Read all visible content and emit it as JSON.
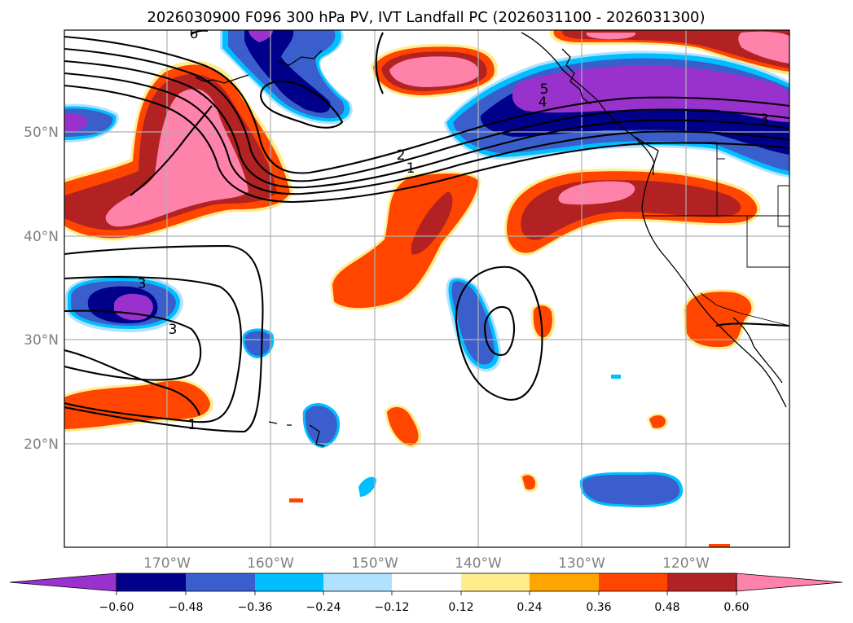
{
  "title": "2026030900 F096 300 hPa PV, IVT Landfall PC (2026031100 - 2026031300)",
  "map": {
    "lon_ticks": [
      "170°W",
      "160°W",
      "150°W",
      "140°W",
      "130°W",
      "120°W"
    ],
    "lat_ticks": [
      "50°N",
      "40°N",
      "30°N",
      "20°N"
    ],
    "contour_labels": [
      "6",
      "5",
      "4",
      "3",
      "2",
      "1",
      "3",
      "3",
      "1"
    ]
  },
  "colorbar": {
    "ticks": [
      "−0.60",
      "−0.48",
      "−0.36",
      "−0.24",
      "−0.12",
      "0.12",
      "0.24",
      "0.36",
      "0.48",
      "0.60"
    ],
    "colors": [
      "#9932CC",
      "#00008B",
      "#3A5FCD",
      "#00BFFF",
      "#B0E2FF",
      "#FFFFFF",
      "#FFEC8B",
      "#FFA500",
      "#FF4500",
      "#B22222",
      "#FF82AB"
    ]
  }
}
